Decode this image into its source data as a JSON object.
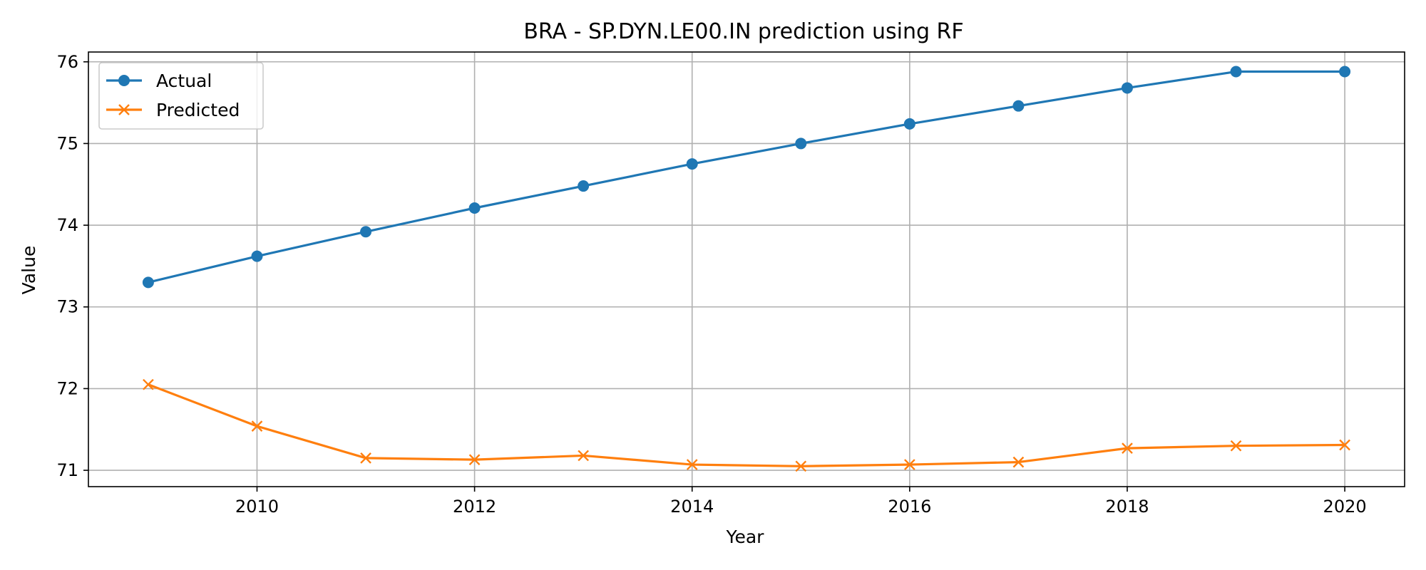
{
  "chart_data": {
    "type": "line",
    "title": "BRA - SP.DYN.LE00.IN prediction using RF",
    "xlabel": "Year",
    "ylabel": "Value",
    "x": [
      2009,
      2010,
      2011,
      2012,
      2013,
      2014,
      2015,
      2016,
      2017,
      2018,
      2019,
      2020
    ],
    "xlim": [
      2008.45,
      2020.55
    ],
    "ylim": [
      70.8,
      76.12
    ],
    "xticks": [
      2010,
      2012,
      2014,
      2016,
      2018,
      2020
    ],
    "yticks": [
      71,
      72,
      73,
      74,
      75,
      76
    ],
    "grid": true,
    "legend_position": "top-left",
    "series": [
      {
        "name": "Actual",
        "marker": "circle",
        "color": "#1f77b4",
        "values": [
          73.3,
          73.62,
          73.92,
          74.21,
          74.48,
          74.75,
          75.0,
          75.24,
          75.46,
          75.68,
          75.88,
          75.88
        ]
      },
      {
        "name": "Predicted",
        "marker": "x",
        "color": "#ff7f0e",
        "values": [
          72.05,
          71.54,
          71.15,
          71.13,
          71.18,
          71.07,
          71.05,
          71.07,
          71.1,
          71.27,
          71.3,
          71.31
        ]
      }
    ]
  }
}
